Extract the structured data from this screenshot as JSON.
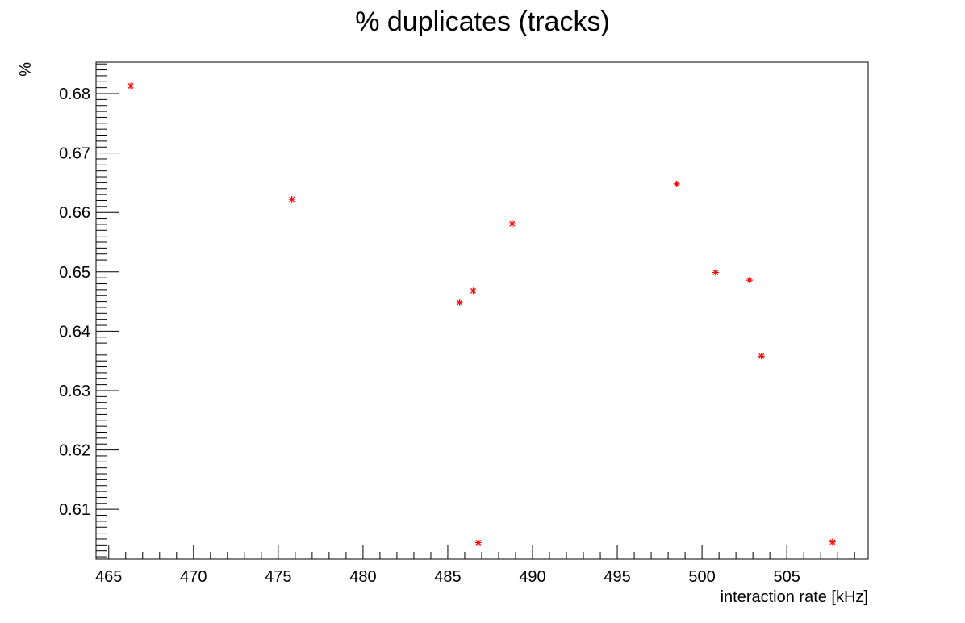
{
  "chart_data": {
    "type": "scatter",
    "title": "% duplicates (tracks)",
    "xlabel": "interaction rate [kHz]",
    "ylabel": "%",
    "xlim": [
      464.25,
      509.8
    ],
    "ylim": [
      0.6016,
      0.6853
    ],
    "x_ticks": [
      465,
      470,
      475,
      480,
      485,
      490,
      495,
      500,
      505
    ],
    "y_ticks": [
      0.61,
      0.62,
      0.63,
      0.64,
      0.65,
      0.66,
      0.67,
      0.68
    ],
    "x_tick_labels": [
      "465",
      "470",
      "475",
      "480",
      "485",
      "490",
      "495",
      "500",
      "505"
    ],
    "y_tick_labels": [
      "0.61",
      "0.62",
      "0.63",
      "0.64",
      "0.65",
      "0.66",
      "0.67",
      "0.68"
    ],
    "marker_color": "#ff0000",
    "marker": "star",
    "grid": false,
    "points": [
      {
        "x": 466.3,
        "y": 0.6813
      },
      {
        "x": 475.8,
        "y": 0.6622
      },
      {
        "x": 485.7,
        "y": 0.6448
      },
      {
        "x": 486.5,
        "y": 0.6468
      },
      {
        "x": 486.8,
        "y": 0.6044
      },
      {
        "x": 488.8,
        "y": 0.6581
      },
      {
        "x": 498.5,
        "y": 0.6648
      },
      {
        "x": 500.8,
        "y": 0.6499
      },
      {
        "x": 502.8,
        "y": 0.6486
      },
      {
        "x": 503.5,
        "y": 0.6358
      },
      {
        "x": 507.7,
        "y": 0.6045
      }
    ]
  }
}
